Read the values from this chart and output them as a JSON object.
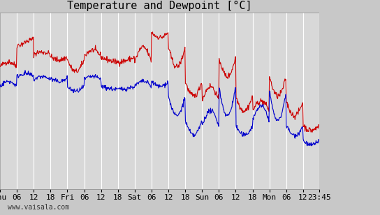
{
  "title": "Temperature and Dewpoint [°C]",
  "ylim": [
    -14,
    4
  ],
  "yticks": [
    -14,
    -12,
    -10,
    -8,
    -6,
    -4,
    -2,
    0,
    2,
    4
  ],
  "bg_color": "#c8c8c8",
  "plot_bg_color": "#d8d8d8",
  "grid_color": "#ffffff",
  "line_color_temp": "#cc0000",
  "line_color_dew": "#0000cc",
  "line_width": 0.8,
  "title_fontsize": 11,
  "tick_fontsize": 8,
  "watermark": "www.vaisala.com",
  "x_tick_labels": [
    "Thu",
    "06",
    "12",
    "18",
    "Fri",
    "06",
    "12",
    "18",
    "Sat",
    "06",
    "12",
    "18",
    "Sun",
    "06",
    "12",
    "18",
    "Mon",
    "06",
    "12",
    "23:45"
  ],
  "x_tick_positions": [
    0,
    6,
    12,
    18,
    24,
    30,
    36,
    42,
    48,
    54,
    60,
    66,
    72,
    78,
    84,
    90,
    96,
    102,
    108,
    113.75
  ],
  "total_hours": 113.75,
  "num_points": 700
}
